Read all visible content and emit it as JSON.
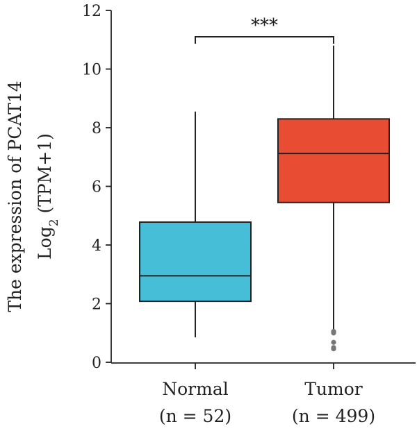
{
  "chart_data": {
    "type": "box",
    "ylabel_line1": "The expression of PCAT14",
    "ylabel_line2_prefix": "Log",
    "ylabel_line2_sub": "2",
    "ylabel_line2_suffix": " (TPM+1)",
    "ylim": [
      0,
      12
    ],
    "yticks": [
      0,
      2,
      4,
      6,
      8,
      10,
      12
    ],
    "significance": "***",
    "groups": [
      {
        "name": "Normal",
        "n_label": "(n = 52)",
        "color": "#47BED8",
        "whisker_low": 0.85,
        "q1": 2.08,
        "median": 2.95,
        "q3": 4.78,
        "whisker_high": 8.55,
        "outliers": []
      },
      {
        "name": "Tumor",
        "n_label": "(n = 499)",
        "color": "#E84C33",
        "whisker_low": 1.1,
        "q1": 5.45,
        "median": 7.12,
        "q3": 8.3,
        "whisker_high": 10.8,
        "outliers": [
          1.05,
          1.0,
          0.68,
          0.5,
          0.46
        ]
      }
    ]
  }
}
